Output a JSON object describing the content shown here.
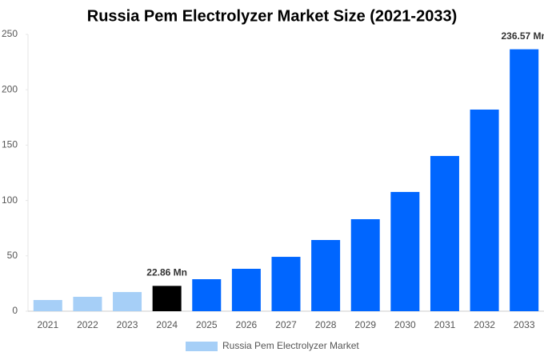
{
  "chart_data": {
    "type": "bar",
    "title": "Russia Pem Electrolyzer Market Size (2021-2033)",
    "categories": [
      "2021",
      "2022",
      "2023",
      "2024",
      "2025",
      "2026",
      "2027",
      "2028",
      "2029",
      "2030",
      "2031",
      "2032",
      "2033"
    ],
    "series": [
      {
        "name": "Russia Pem Electrolyzer Market",
        "color": "#a6cff7",
        "colors": [
          "#a6cff7",
          "#a6cff7",
          "#a6cff7",
          "#000000",
          "#0066ff",
          "#0066ff",
          "#0066ff",
          "#0066ff",
          "#0066ff",
          "#0066ff",
          "#0066ff",
          "#0066ff",
          "#0066ff"
        ],
        "values": [
          10.1,
          13,
          17.3,
          22.86,
          28.9,
          38.3,
          49.1,
          64.3,
          83.1,
          107.7,
          140.2,
          182.1,
          236.57
        ],
        "value_labels": [
          null,
          null,
          null,
          "22.86 Mn",
          null,
          null,
          null,
          null,
          null,
          null,
          null,
          null,
          "236.57 Mn"
        ]
      }
    ],
    "ylim": [
      0,
      250
    ],
    "yticks": [
      0,
      50,
      100,
      150,
      200,
      250
    ],
    "grid": false,
    "legend": "bottom"
  }
}
